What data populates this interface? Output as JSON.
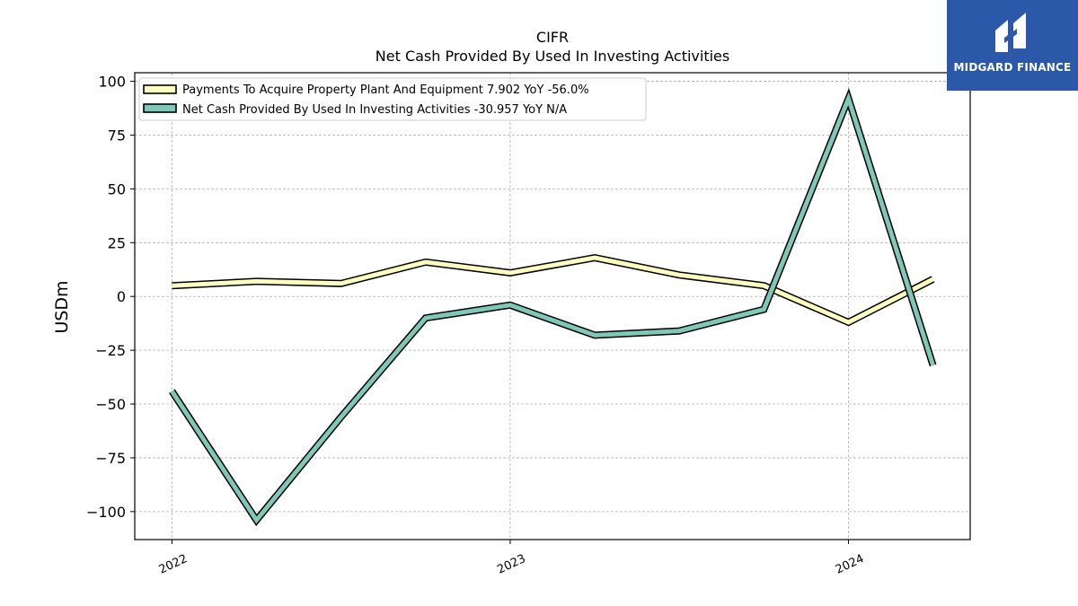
{
  "chart_data": {
    "type": "line",
    "title": "CIFR",
    "subtitle": "Net Cash Provided By Used In Investing Activities",
    "xlabel": "",
    "ylabel": "USDm",
    "xlim": [
      2021.89,
      2024.36
    ],
    "ylim": [
      -113,
      104
    ],
    "yticks": [
      100,
      75,
      50,
      25,
      0,
      -25,
      -50,
      -75,
      -100
    ],
    "ytick_labels": [
      "100",
      "75",
      "50",
      "25",
      "0",
      "−25",
      "−50",
      "−75",
      "−100"
    ],
    "xticks": [
      2022,
      2023,
      2024
    ],
    "xtick_labels": [
      "2022",
      "2023",
      "2024"
    ],
    "grid": true,
    "legend_position": "top-left",
    "x": [
      2022.0,
      2022.25,
      2022.5,
      2022.75,
      2023.0,
      2023.25,
      2023.5,
      2023.75,
      2024.0,
      2024.25
    ],
    "series": [
      {
        "name": "Payments To Acquire Property Plant And Equipment",
        "legend": "Payments To Acquire Property Plant And Equipment  7.902 YoY -56.0%",
        "color": "#ffffbf",
        "values": [
          5,
          7,
          6,
          16,
          11,
          18,
          10,
          5,
          -12,
          8
        ]
      },
      {
        "name": "Net Cash Provided By Used In Investing Activities",
        "legend": "Net Cash Provided By Used In Investing Activities  -30.957 YoY N/A",
        "color": "#7fc8b8",
        "values": [
          -44,
          -104,
          -56,
          -10,
          -4,
          -18,
          -16,
          -6,
          92,
          -32
        ]
      }
    ]
  },
  "logo": {
    "text": "MIDGARD FINANCE",
    "background": "#2b58a8"
  }
}
